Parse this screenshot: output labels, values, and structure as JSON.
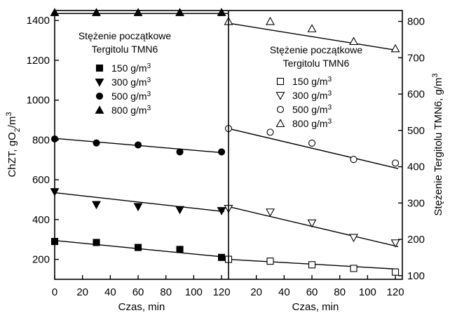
{
  "chart_data": [
    {
      "type": "scatter",
      "panel": "left",
      "xlabel": "Czas, min",
      "ylabel": "ChZT, gO",
      "ylabel_sub": "2",
      "ylabel_tail": "/m",
      "ylabel_sup": "3",
      "xlim": [
        0,
        125
      ],
      "ylim": [
        100,
        1450
      ],
      "xticks": [
        "0",
        "20",
        "40",
        "60",
        "80",
        "100",
        "120"
      ],
      "yticks": [
        "200",
        "400",
        "600",
        "800",
        "1000",
        "1200",
        "1400"
      ],
      "legend_title_1": "Stężenie początkowe",
      "legend_title_2": "Tergitolu TMN6",
      "legend_placement": "upper-left",
      "series": [
        {
          "name": "150 g/m",
          "unit_sup": "3",
          "marker": "filled-square",
          "x": [
            0,
            30,
            60,
            90,
            120
          ],
          "y": [
            290,
            285,
            260,
            250,
            210
          ],
          "fit": [
            [
              0,
              295
            ],
            [
              122,
              212
            ]
          ]
        },
        {
          "name": "300 g/m",
          "unit_sup": "3",
          "marker": "filled-triangle-down",
          "x": [
            0,
            30,
            60,
            90,
            120
          ],
          "y": [
            540,
            475,
            465,
            450,
            445
          ],
          "fit": [
            [
              0,
              535
            ],
            [
              122,
              440
            ]
          ]
        },
        {
          "name": "500 g/m",
          "unit_sup": "3",
          "marker": "filled-circle",
          "x": [
            0,
            30,
            60,
            90,
            120
          ],
          "y": [
            805,
            785,
            775,
            740,
            740
          ],
          "fit": [
            [
              0,
              808
            ],
            [
              122,
              735
            ]
          ]
        },
        {
          "name": "800 g/m",
          "unit_sup": "3",
          "marker": "filled-triangle-up",
          "x": [
            0,
            30,
            60,
            90,
            120
          ],
          "y": [
            1440,
            1440,
            1440,
            1440,
            1440
          ],
          "fit": [
            [
              0,
              1435
            ],
            [
              125,
              1435
            ]
          ]
        }
      ]
    },
    {
      "type": "scatter",
      "panel": "right",
      "xlabel": "Czas, min",
      "ylabel": "Stężenie Tergitolu TMN6, g/m",
      "ylabel_sup": "3",
      "xlim": [
        0,
        125
      ],
      "ylim": [
        90,
        830
      ],
      "xticks": [
        "20",
        "40",
        "60",
        "80",
        "100",
        "120"
      ],
      "yticks": [
        "100",
        "200",
        "300",
        "400",
        "500",
        "600",
        "700",
        "800"
      ],
      "legend_title_1": "Stężenie początkowe",
      "legend_title_2": "Tergitolu TMN6",
      "legend_placement": "center",
      "series": [
        {
          "name": "150 g/m",
          "unit_sup": "3",
          "marker": "open-square",
          "x": [
            0,
            30,
            60,
            90,
            120
          ],
          "y": [
            145,
            140,
            130,
            120,
            110
          ],
          "fit": [
            [
              0,
              145
            ],
            [
              122,
              118
            ]
          ]
        },
        {
          "name": "300 g/m",
          "unit_sup": "3",
          "marker": "open-triangle-down",
          "x": [
            0,
            30,
            60,
            90,
            120
          ],
          "y": [
            285,
            275,
            245,
            205,
            190
          ],
          "fit": [
            [
              0,
              290
            ],
            [
              122,
              180
            ]
          ]
        },
        {
          "name": "500 g/m",
          "unit_sup": "3",
          "marker": "open-circle",
          "x": [
            0,
            30,
            60,
            90,
            120
          ],
          "y": [
            505,
            495,
            465,
            420,
            410
          ],
          "fit": [
            [
              0,
              505
            ],
            [
              122,
              395
            ]
          ]
        },
        {
          "name": "800 g/m",
          "unit_sup": "3",
          "marker": "open-triangle-up",
          "x": [
            0,
            30,
            60,
            90,
            120
          ],
          "y": [
            800,
            800,
            780,
            745,
            725
          ],
          "fit": [
            [
              0,
              795
            ],
            [
              122,
              720
            ]
          ]
        }
      ]
    }
  ]
}
